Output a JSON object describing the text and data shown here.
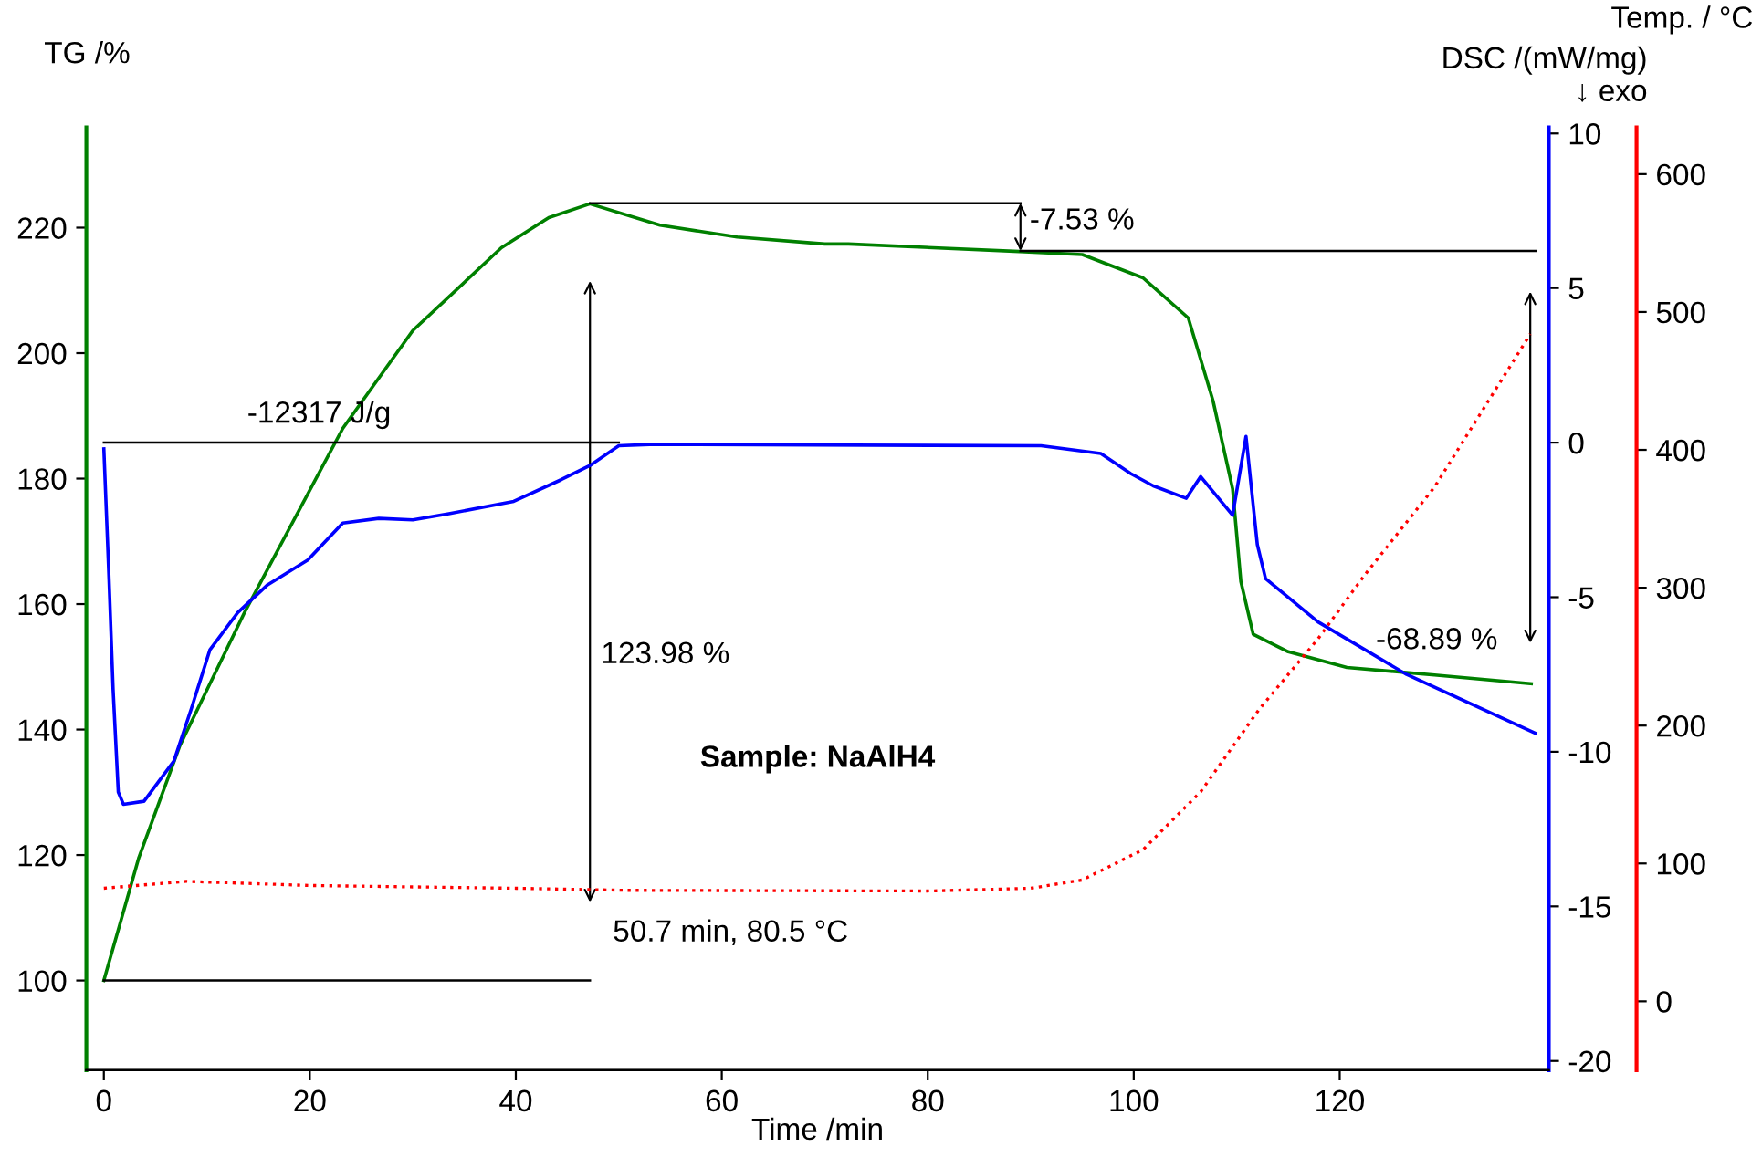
{
  "chart_data": {
    "type": "line",
    "xlabel": "Time /min",
    "ylabel": "TG /%",
    "y2label": "DSC /(mW/mg)\n↓ exo",
    "y3label": "Temp. / °C",
    "xlim": [
      -1.7,
      140.3
    ],
    "xticks": [
      0,
      20,
      40,
      60,
      80,
      100,
      120
    ],
    "ylim": [
      85.7,
      236
    ],
    "yticks": [
      100,
      120,
      140,
      160,
      180,
      200,
      220
    ],
    "y2lim": [
      -20.3,
      10.2
    ],
    "y2ticks": [
      -20,
      -15,
      -10,
      -5,
      0,
      5,
      10
    ],
    "y3lim": [
      -50,
      634
    ],
    "y3ticks": [
      0,
      100,
      200,
      300,
      400,
      500,
      600
    ],
    "series": [
      {
        "color": "#008000",
        "axis": "y",
        "x": [
          0,
          3.4,
          7.4,
          13.7,
          23.2,
          30,
          38.6,
          43.2,
          47.2,
          54,
          61.5,
          70,
          72.3,
          88.9,
          95,
          100.9,
          105.3,
          107.7,
          109.6,
          110.4,
          111.6,
          115,
          120.7,
          129.2,
          138.6
        ],
        "values": [
          100,
          119.6,
          137.5,
          158.8,
          188,
          203.6,
          216.8,
          221.6,
          223.8,
          220.4,
          218.5,
          217.4,
          217.4,
          216.2,
          215.7,
          212,
          205.6,
          192.4,
          178.4,
          163.6,
          155.2,
          152.4,
          149.9,
          148.7,
          147.3
        ]
      },
      {
        "color": "#0000ff",
        "axis": "y2",
        "x": [
          0,
          0.5,
          0.9,
          1.4,
          1.9,
          3.9,
          6.8,
          8.5,
          10.3,
          13,
          15.9,
          19.8,
          23.2,
          26.7,
          30,
          33.5,
          39.8,
          44.4,
          47.2,
          50,
          53,
          91,
          96.8,
          99.7,
          101.9,
          105.1,
          106.5,
          109.6,
          110.9,
          112,
          112.8,
          117.9,
          126.5,
          139
        ],
        "values": [
          -0.2,
          -4.4,
          -8.0,
          -11.3,
          -11.7,
          -11.6,
          -10.3,
          -8.6,
          -6.7,
          -5.5,
          -4.6,
          -3.8,
          -2.6,
          -2.45,
          -2.5,
          -2.3,
          -1.9,
          -1.2,
          -0.74,
          -0.1,
          -0.06,
          -0.1,
          -0.35,
          -1.0,
          -1.4,
          -1.8,
          -1.1,
          -2.35,
          0.2,
          -3.3,
          -4.4,
          -5.8,
          -7.5,
          -9.4
        ]
      },
      {
        "color": "#ff0000",
        "axis": "y3",
        "line_style": "dotted",
        "x": [
          0,
          8,
          20,
          40,
          50.7,
          80,
          90,
          95,
          100.9,
          106.5,
          112.2,
          117.9,
          122.4,
          129.2,
          138.5
        ],
        "values": [
          82,
          87,
          84,
          82,
          80.5,
          80,
          82,
          88,
          110,
          152,
          212,
          263,
          309,
          373,
          484
        ]
      },
      {
        "color": "#000000",
        "axis": "y",
        "x": [
          0,
          47.2
        ],
        "values": [
          100,
          100
        ]
      },
      {
        "color": "#000000",
        "axis": "y",
        "x": [
          47.2,
          89
        ],
        "values": [
          223.9,
          223.9
        ]
      },
      {
        "color": "#000000",
        "axis": "y",
        "x": [
          89,
          139
        ],
        "values": [
          216.3,
          216.3
        ]
      },
      {
        "color": "#000000",
        "axis": "y2",
        "x": [
          0,
          50
        ],
        "values": [
          0,
          0
        ]
      },
      {
        "color": "#000000",
        "axis": "y",
        "x": [
          47.2,
          47.2
        ],
        "values": [
          112.5,
          211.5
        ]
      },
      {
        "color": "#000000",
        "axis": "y",
        "x": [
          89,
          89
        ],
        "values": [
          216.3,
          223.9
        ]
      },
      {
        "color": "#000000",
        "axis": "y",
        "x": [
          138.5,
          138.5
        ],
        "values": [
          153.8,
          209.8
        ]
      }
    ],
    "annotations": [
      "-12317 J/g",
      "123.98 %",
      "-7.53 %",
      "-68.89 %",
      "50.7 min, 80.5 °C",
      "Sample: NaAlH4"
    ]
  }
}
